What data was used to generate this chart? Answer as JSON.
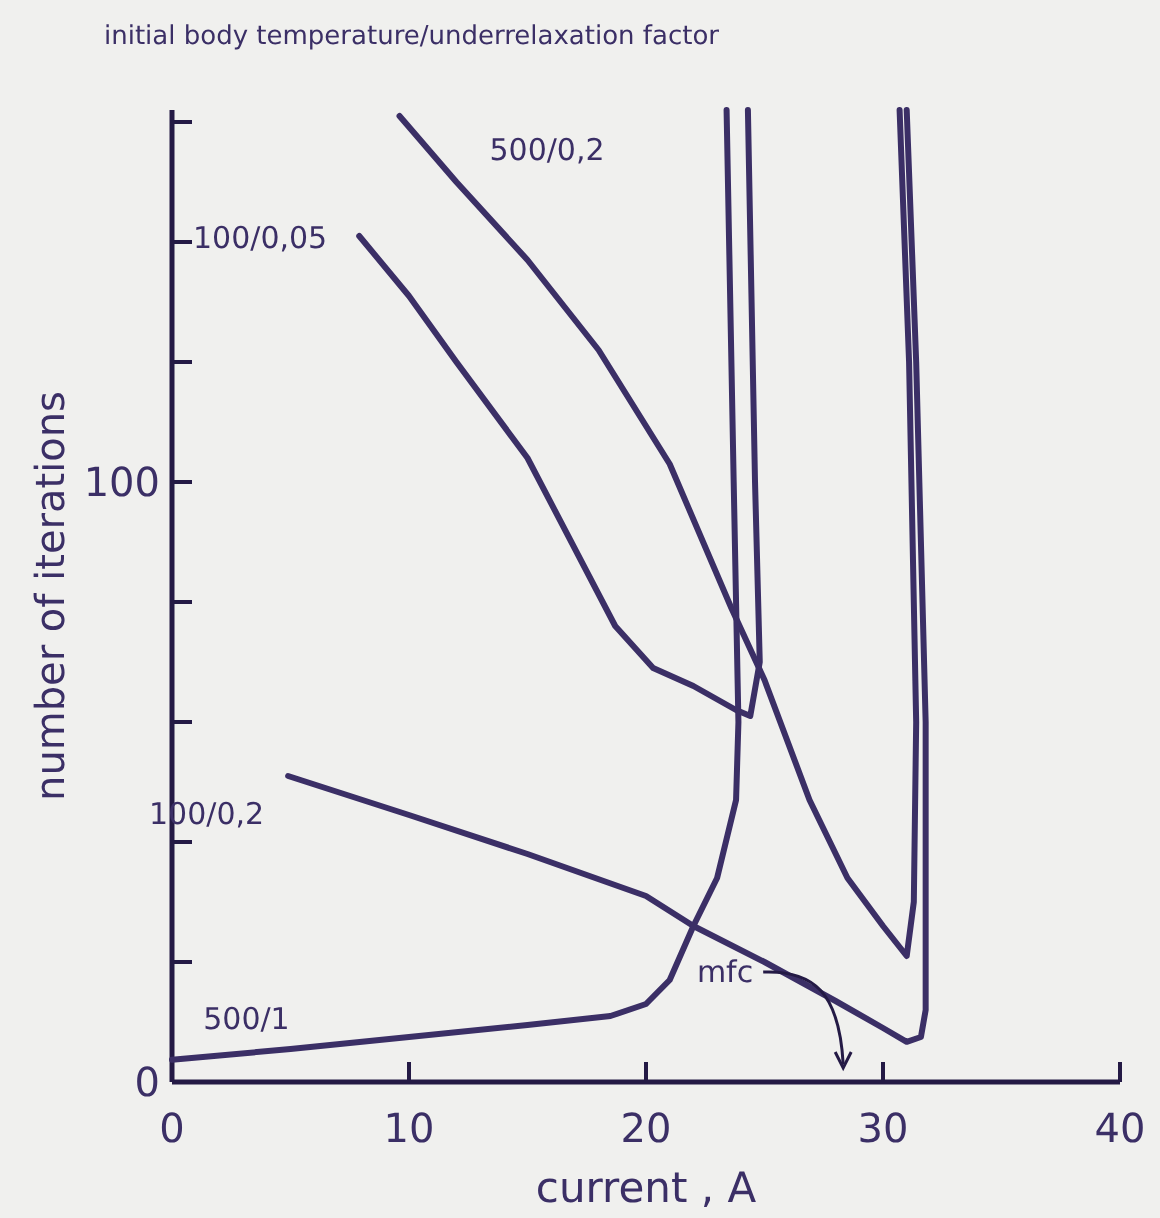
{
  "chart_data": {
    "type": "line",
    "title": "initial body temperature/underrelaxation factor",
    "xlabel": "current , A",
    "ylabel": "number of iterations",
    "xlim": [
      0,
      40
    ],
    "xticks": [
      0,
      10,
      20,
      30,
      40
    ],
    "ylim": [
      0,
      162
    ],
    "yticks": [
      0,
      {
        "value": 20,
        "label": null
      },
      {
        "value": 40,
        "label": null
      },
      {
        "value": 60,
        "label": null
      },
      {
        "value": 80,
        "label": null
      },
      100,
      {
        "value": 120,
        "label": null
      },
      {
        "value": 140,
        "label": null
      },
      {
        "value": 160,
        "label": null
      }
    ],
    "grid": false,
    "marker": "none",
    "line_style": "solid",
    "series": [
      {
        "name": "500/0,2",
        "color": "#3b2f66",
        "x": [
          9.6,
          12,
          15,
          18,
          21,
          23.6,
          25,
          26.9,
          28.5,
          30,
          31,
          31.3,
          31.4,
          31.1,
          30.7
        ],
        "values": [
          161,
          150,
          137,
          122,
          103,
          79,
          67,
          47,
          34,
          26,
          21,
          30,
          60,
          120,
          162
        ]
      },
      {
        "name": "100/0,05",
        "color": "#3b2f66",
        "x": [
          7.9,
          10,
          12,
          15,
          18.7,
          20.3,
          22,
          23.8,
          24.4,
          24.8,
          24.6,
          24.3
        ],
        "values": [
          141,
          131,
          120,
          104,
          76,
          69,
          66,
          62,
          61,
          70,
          100,
          162
        ]
      },
      {
        "name": "100/0,2",
        "color": "#3b2f66",
        "x": [
          4.9,
          10,
          15,
          20,
          22,
          25,
          28,
          30,
          31,
          31.6,
          31.8,
          31.8,
          31.4,
          31
        ],
        "values": [
          51,
          44.5,
          38,
          31,
          26,
          20,
          13.5,
          9,
          6.7,
          7.5,
          12,
          60,
          120,
          162
        ]
      },
      {
        "name": "500/1",
        "color": "#3b2f66",
        "x": [
          0,
          5,
          10,
          15,
          18.5,
          20,
          21,
          22,
          23,
          23.8,
          23.9,
          23.7,
          23.4
        ],
        "values": [
          3.7,
          5.5,
          7.5,
          9.5,
          11,
          13,
          17,
          26,
          34,
          47,
          60,
          100,
          162
        ]
      }
    ],
    "annotations": [
      "mfc"
    ]
  }
}
